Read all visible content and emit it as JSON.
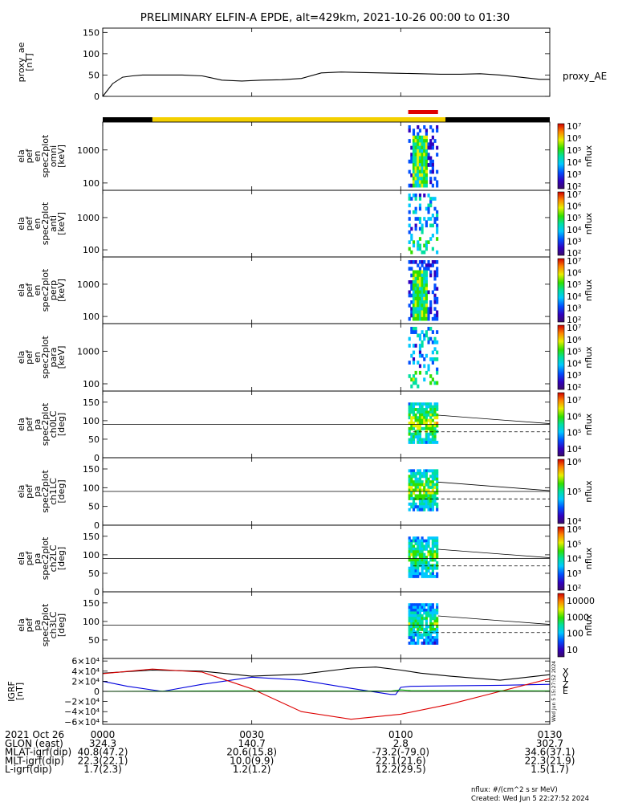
{
  "title": "PRELIMINARY ELFIN-A EPDE, alt=429km, 2021-10-26 00:00 to 01:30",
  "colors": {
    "axes": "#000000",
    "status_black": "#000000",
    "status_yellow": "#f4d000",
    "status_red": "#e00000",
    "grf_x": "#000000",
    "grf_y": "#0000dd",
    "grf_z": "#dd0000",
    "grf_e": "#00bb00"
  },
  "chart_data": [
    {
      "type": "line",
      "panel": "proxy_ae",
      "ylabel_lines": [
        "proxy_ae",
        "[nT]"
      ],
      "ylim": [
        0,
        160
      ],
      "yticks": [
        "0",
        "50",
        "100",
        "150"
      ],
      "ytick_values": [
        0,
        50,
        100,
        150
      ],
      "series": [
        {
          "name": "proxy_AE",
          "x_min": [
            0,
            2,
            4,
            6,
            8,
            12,
            16,
            20,
            24,
            28,
            32,
            36,
            40,
            44,
            48,
            52,
            56,
            60,
            64,
            68,
            72,
            76,
            80,
            84,
            88,
            90
          ],
          "values": [
            0,
            30,
            45,
            48,
            50,
            50,
            50,
            48,
            38,
            36,
            38,
            39,
            42,
            55,
            57,
            56,
            55,
            54,
            53,
            52,
            52,
            53,
            50,
            45,
            40,
            40
          ]
        }
      ]
    },
    {
      "type": "heatmap",
      "panel": "ela_pef_en_spec2plot_omni",
      "ylabel_lines": [
        "ela",
        "pef",
        "en",
        "spec2plot",
        "omni",
        "[keV]"
      ],
      "yscale": "log",
      "yticks": [
        "100",
        "1000"
      ],
      "colorbar": {
        "label": "nflux",
        "min": 100,
        "max": 10000000,
        "ticks": [
          "10²",
          "10³",
          "10⁴",
          "10⁵",
          "10⁶",
          "10⁷"
        ]
      }
    },
    {
      "type": "heatmap",
      "panel": "ela_pef_en_spec2plot_anti",
      "ylabel_lines": [
        "ela",
        "pef",
        "en",
        "spec2plot",
        "anti",
        "[keV]"
      ],
      "yscale": "log",
      "yticks": [
        "100",
        "1000"
      ],
      "colorbar": {
        "label": "nflux",
        "min": 100,
        "max": 10000000,
        "ticks": [
          "10²",
          "10³",
          "10⁴",
          "10⁵",
          "10⁶",
          "10⁷"
        ]
      }
    },
    {
      "type": "heatmap",
      "panel": "ela_pef_en_spec2plot_perp",
      "ylabel_lines": [
        "ela",
        "pef",
        "en",
        "spec2plot",
        "perp",
        "[keV]"
      ],
      "yscale": "log",
      "yticks": [
        "100",
        "1000"
      ],
      "colorbar": {
        "label": "nflux",
        "min": 100,
        "max": 10000000,
        "ticks": [
          "10²",
          "10³",
          "10⁴",
          "10⁵",
          "10⁶",
          "10⁷"
        ]
      }
    },
    {
      "type": "heatmap",
      "panel": "ela_pef_en_spec2plot_para",
      "ylabel_lines": [
        "ela",
        "pef",
        "en",
        "spec2plot",
        "para",
        "[keV]"
      ],
      "yscale": "log",
      "yticks": [
        "100",
        "1000"
      ],
      "colorbar": {
        "label": "nflux",
        "min": 100,
        "max": 10000000,
        "ticks": [
          "10²",
          "10³",
          "10⁴",
          "10⁵",
          "10⁶",
          "10⁷"
        ]
      }
    },
    {
      "type": "heatmap",
      "panel": "ela_pef_pa_spec2plot_ch0LC",
      "ylabel_lines": [
        "ela",
        "pef",
        "pa",
        "spec2plot",
        "ch0LC",
        "[deg]"
      ],
      "ylim": [
        0,
        180
      ],
      "yticks": [
        "0",
        "50",
        "100",
        "150"
      ],
      "ytick_values": [
        0,
        50,
        100,
        150
      ],
      "colorbar": {
        "label": "nflux",
        "min": 1000,
        "max": 10000000,
        "ticks": [
          "10⁴",
          "10⁵",
          "10⁶",
          "10⁷"
        ]
      }
    },
    {
      "type": "heatmap",
      "panel": "ela_pef_pa_spec2plot_ch1LC",
      "ylabel_lines": [
        "ela",
        "pef",
        "pa",
        "spec2plot",
        "ch1LC",
        "[deg]"
      ],
      "ylim": [
        0,
        180
      ],
      "yticks": [
        "0",
        "50",
        "100",
        "150"
      ],
      "ytick_values": [
        0,
        50,
        100,
        150
      ],
      "colorbar": {
        "label": "nflux",
        "min": 1000,
        "max": 10000000,
        "ticks": [
          "10⁴",
          "10⁵",
          "10⁶"
        ]
      }
    },
    {
      "type": "heatmap",
      "panel": "ela_pef_pa_spec2plot_ch2LC",
      "ylabel_lines": [
        "ela",
        "pef",
        "pa",
        "spec2plot",
        "ch2LC",
        "[deg]"
      ],
      "ylim": [
        0,
        180
      ],
      "yticks": [
        "0",
        "50",
        "100",
        "150"
      ],
      "ytick_values": [
        0,
        50,
        100,
        150
      ],
      "colorbar": {
        "label": "nflux",
        "min": 100,
        "max": 1000000,
        "ticks": [
          "10²",
          "10³",
          "10⁴",
          "10⁵",
          "10⁶"
        ]
      }
    },
    {
      "type": "heatmap",
      "panel": "ela_pef_pa_spec2plot_ch3LC",
      "ylabel_lines": [
        "ela",
        "pef",
        "pa",
        "spec2plot",
        "ch3LC",
        "[deg]"
      ],
      "ylim": [
        0,
        180
      ],
      "yticks": [
        "50",
        "100",
        "150"
      ],
      "ytick_values": [
        50,
        100,
        150
      ],
      "colorbar": {
        "label": "nflux",
        "min": 10,
        "max": 10000,
        "ticks": [
          "10",
          "100",
          "1000",
          "10000"
        ]
      }
    },
    {
      "type": "line",
      "panel": "IGRF",
      "ylabel_lines": [
        "IGRF",
        "[nT]"
      ],
      "ylim": [
        -65000,
        65000
      ],
      "yticks": [
        "−6×10⁴",
        "−4×10⁴",
        "−2×10⁴",
        "0",
        "2×10⁴",
        "4×10⁴",
        "6×10⁴"
      ],
      "ytick_values": [
        -60000,
        -40000,
        -20000,
        0,
        20000,
        40000,
        60000
      ],
      "series": [
        {
          "name": "X",
          "x_min": [
            0,
            10,
            20,
            30,
            40,
            50,
            55,
            60,
            64,
            70,
            80,
            90
          ],
          "values": [
            36000,
            42000,
            40000,
            30000,
            34000,
            46000,
            48000,
            42000,
            36000,
            30000,
            22000,
            33000
          ]
        },
        {
          "name": "Y",
          "x_min": [
            0,
            5,
            12,
            20,
            30,
            40,
            50,
            58,
            59,
            60,
            62,
            70,
            80,
            90
          ],
          "values": [
            20000,
            10000,
            0,
            14000,
            28000,
            22000,
            6000,
            -6000,
            -6000,
            8000,
            10000,
            11000,
            12000,
            14000
          ]
        },
        {
          "name": "Z",
          "x_min": [
            0,
            10,
            20,
            30,
            40,
            50,
            60,
            70,
            80,
            90
          ],
          "values": [
            35000,
            44000,
            38000,
            5000,
            -40000,
            -55000,
            -45000,
            -25000,
            0,
            25000
          ]
        },
        {
          "name": "E",
          "x_min": [
            0,
            30,
            58,
            60,
            62,
            90
          ],
          "values": [
            0,
            1000,
            500,
            3000,
            1500,
            1000
          ]
        }
      ],
      "legend": [
        "X",
        "Y",
        "Z",
        "E"
      ]
    }
  ],
  "x_axis": {
    "ticks": [
      {
        "min": 0,
        "label": "0000"
      },
      {
        "min": 30,
        "label": "0030"
      },
      {
        "min": 60,
        "label": "0100"
      },
      {
        "min": 90,
        "label": "0130"
      }
    ]
  },
  "ephemeris": {
    "rows": [
      {
        "label": "2021 Oct 26",
        "values": [
          "0000",
          "0030",
          "0100",
          "0130"
        ]
      },
      {
        "label": "GLON (east)",
        "values": [
          "324.3",
          "140.7",
          "2.8",
          "302.7"
        ]
      },
      {
        "label": "MLAT-igrf(dip)",
        "values": [
          "40.8(47.2)",
          "20.6(15.8)",
          "-73.2(-79.0)",
          "34.6(37.1)"
        ]
      },
      {
        "label": "MLT-igrf(dip)",
        "values": [
          "22.3(22.1)",
          "10.0(9.9)",
          "22.1(21.6)",
          "22.3(21.9)"
        ]
      },
      {
        "label": "L-igrf(dip)",
        "values": [
          "1.7(2.3)",
          "1.2(1.2)",
          "12.2(29.5)",
          "1.5(1.7)"
        ]
      }
    ]
  },
  "status_bar": {
    "segments": [
      {
        "start_min": 0,
        "end_min": 10,
        "color": "status_black"
      },
      {
        "start_min": 10,
        "end_min": 69,
        "color": "status_yellow"
      },
      {
        "start_min": 69,
        "end_min": 90,
        "color": "status_black"
      }
    ],
    "red_marker": {
      "start_min": 61.5,
      "end_min": 67.5
    }
  },
  "footer": {
    "units": "nflux: #/(cm^2 s sr MeV)",
    "created": "Created: Wed Jun  5 22:27:52 2024",
    "stamp": "Wed Jun  5 15:27:52 2024"
  }
}
